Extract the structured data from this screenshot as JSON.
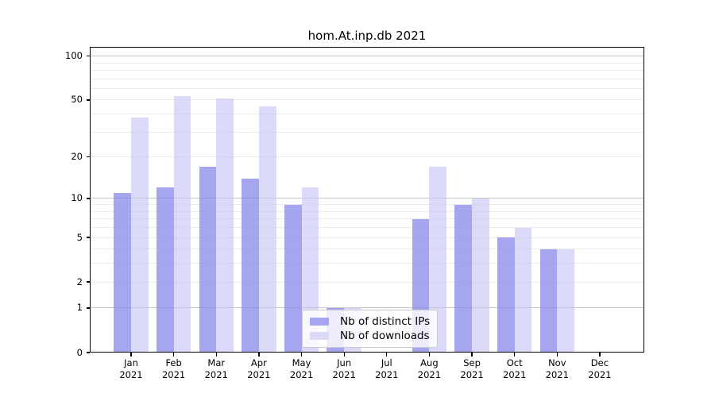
{
  "title": "hom.At.inp.db 2021",
  "chart_data": {
    "type": "bar",
    "title": "hom.At.inp.db 2021",
    "categories": [
      "Jan",
      "Feb",
      "Mar",
      "Apr",
      "May",
      "Jun",
      "Jul",
      "Aug",
      "Sep",
      "Oct",
      "Nov",
      "Dec"
    ],
    "category_year": "2021",
    "series": [
      {
        "name": "Nb of distinct IPs",
        "color": "rgba(132,132,234,0.72)",
        "legend_color": "#a6a6f0",
        "values": [
          11,
          12,
          17,
          14,
          9,
          1,
          0,
          7,
          9,
          5,
          4,
          0
        ]
      },
      {
        "name": "Nb of downloads",
        "color": "rgba(197,197,245,0.62)",
        "legend_color": "#dbdbf8",
        "values": [
          38,
          53,
          51,
          45,
          12,
          1,
          0,
          17,
          10,
          6,
          4,
          0
        ]
      }
    ],
    "xlabel": "",
    "ylabel": "",
    "y_scale": "log1p",
    "y_tick_values": [
      0,
      1,
      2,
      5,
      10,
      20,
      50,
      100
    ],
    "major_gridline_values": [
      1,
      10,
      100
    ],
    "minor_gridline_values": [
      2,
      3,
      4,
      5,
      6,
      7,
      8,
      9,
      20,
      30,
      40,
      50,
      60,
      70,
      80,
      90
    ],
    "ylim": [
      0,
      113
    ],
    "grid": true,
    "legend_position": "lower center"
  },
  "colors": {
    "background": "#ffffff",
    "spine": "#000000",
    "major_grid": "#c6c6c6",
    "minor_grid": "#ebebeb",
    "legend_border": "#cbcbcb",
    "text": "#000000"
  }
}
